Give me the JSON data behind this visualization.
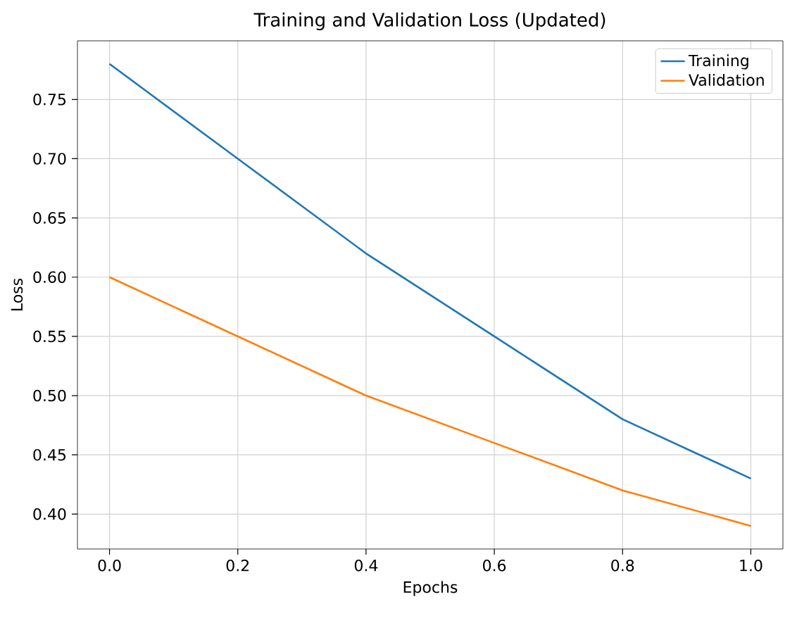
{
  "chart_data": {
    "type": "line",
    "title": "Training and Validation Loss (Updated)",
    "xlabel": "Epochs",
    "ylabel": "Loss",
    "x": [
      0,
      0.2,
      0.4,
      0.6,
      0.8,
      1.0
    ],
    "series": [
      {
        "name": "Training",
        "color": "#1f77b4",
        "values": [
          0.78,
          0.7,
          0.62,
          0.55,
          0.48,
          0.43
        ]
      },
      {
        "name": "Validation",
        "color": "#ff7f0e",
        "values": [
          0.6,
          0.55,
          0.5,
          0.46,
          0.42,
          0.39
        ]
      }
    ],
    "xlim": [
      -0.05,
      1.05
    ],
    "ylim": [
      0.3705,
      0.7995
    ],
    "xticks": [
      {
        "value": 0,
        "label": "0.0"
      },
      {
        "value": 0.2,
        "label": "0.2"
      },
      {
        "value": 0.4,
        "label": "0.4"
      },
      {
        "value": 0.6,
        "label": "0.6"
      },
      {
        "value": 0.8,
        "label": "0.8"
      },
      {
        "value": 1.0,
        "label": "1.0"
      }
    ],
    "yticks": [
      {
        "value": 0.4,
        "label": "0.40"
      },
      {
        "value": 0.45,
        "label": "0.45"
      },
      {
        "value": 0.5,
        "label": "0.50"
      },
      {
        "value": 0.55,
        "label": "0.55"
      },
      {
        "value": 0.6,
        "label": "0.60"
      },
      {
        "value": 0.65,
        "label": "0.65"
      },
      {
        "value": 0.7,
        "label": "0.70"
      },
      {
        "value": 0.75,
        "label": "0.75"
      }
    ],
    "grid": true,
    "legend": "top right",
    "marker": "none",
    "line_style": "solid"
  }
}
